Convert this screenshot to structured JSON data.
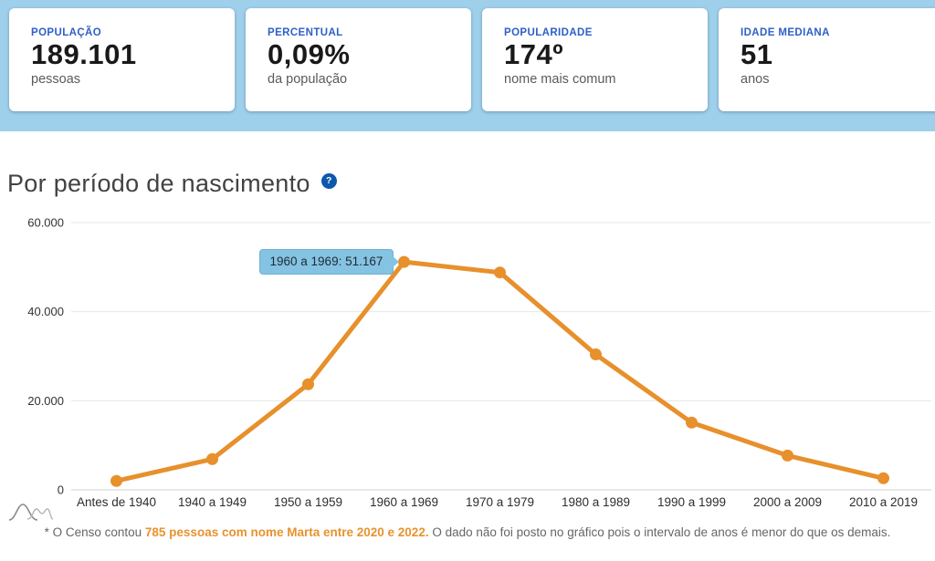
{
  "colors": {
    "band_blue": "#9ecfeb",
    "accent_blue": "#2e5fc7",
    "help_blue": "#0d57ad",
    "line_orange": "#e7902c",
    "tooltip_bg": "#85c3e3"
  },
  "stats_cards": [
    {
      "label": "POPULAÇÃO",
      "value": "189.101",
      "sub": "pessoas"
    },
    {
      "label": "PERCENTUAL",
      "value": "0,09%",
      "sub": "da população"
    },
    {
      "label": "POPULARIDADE",
      "value": "174º",
      "sub": "nome mais comum"
    },
    {
      "label": "IDADE MEDIANA",
      "value": "51",
      "sub": "anos"
    }
  ],
  "section": {
    "title": "Por período de nascimento",
    "help_glyph": "?"
  },
  "chart_data": {
    "type": "line",
    "title": "Por período de nascimento",
    "categories": [
      "Antes de 1940",
      "1940 a 1949",
      "1950 a 1959",
      "1960 a 1969",
      "1970 a 1979",
      "1980 a 1989",
      "1990 a 1999",
      "2000 a 2009",
      "2010 a 2019"
    ],
    "values": [
      2000,
      6900,
      23700,
      51167,
      48800,
      30400,
      15100,
      7700,
      2600
    ],
    "ylim": [
      0,
      60000
    ],
    "y_ticks": [
      {
        "value": 0,
        "label": "0"
      },
      {
        "value": 20000,
        "label": "20.000"
      },
      {
        "value": 40000,
        "label": "40.000"
      },
      {
        "value": 60000,
        "label": "60.000"
      }
    ],
    "grid": true,
    "legend": "none",
    "line_color": "#e7902c",
    "tooltip": {
      "text": "1960 a 1969: 51.167",
      "category_index": 3,
      "value": 51167
    }
  },
  "footnote": {
    "prefix": "* O Censo contou ",
    "highlight": "785 pessoas com nome Marta entre 2020 e 2022.",
    "suffix": " O dado não foi posto no gráfico pois o intervalo de anos é menor do que os demais."
  }
}
